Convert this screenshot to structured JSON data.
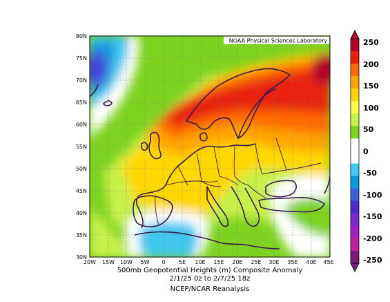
{
  "credit": "NOAA Physical Sciences Laboratory",
  "caption": {
    "line1": "500mb Geopotential Heights (m)   Composite Anomaly",
    "line2": "2/1/25 0z  to 2/7/25 18z",
    "line3": "NCEP/NCAR Reanalysis"
  },
  "lat_labels": [
    "80N",
    "75N",
    "70N",
    "65N",
    "60N",
    "55N",
    "50N",
    "45N",
    "40N",
    "35N",
    "30N"
  ],
  "lon_labels": [
    "20W",
    "15W",
    "10W",
    "5W",
    "0",
    "5E",
    "10E",
    "15E",
    "20E",
    "25E",
    "30E",
    "35E",
    "40E",
    "45E"
  ],
  "colorbar": {
    "labels": [
      "250",
      "200",
      "150",
      "100",
      "50",
      "0",
      "-50",
      "-100",
      "-150",
      "-200",
      "-250"
    ],
    "colors": [
      "#b0002a",
      "#e8200d",
      "#ff6a00",
      "#ffa500",
      "#ffd700",
      "#ffff4a",
      "#c8f04a",
      "#7ed321",
      "#ffffff",
      "#ffffff",
      "#40c8f0",
      "#0a9ae0",
      "#3a5fd8",
      "#4b2ad0",
      "#7a2bd0",
      "#a020c0",
      "#c020a0",
      "#7a1a7a"
    ]
  },
  "map": {
    "lon_range": [
      -20,
      45
    ],
    "lat_range": [
      30,
      80
    ]
  }
}
